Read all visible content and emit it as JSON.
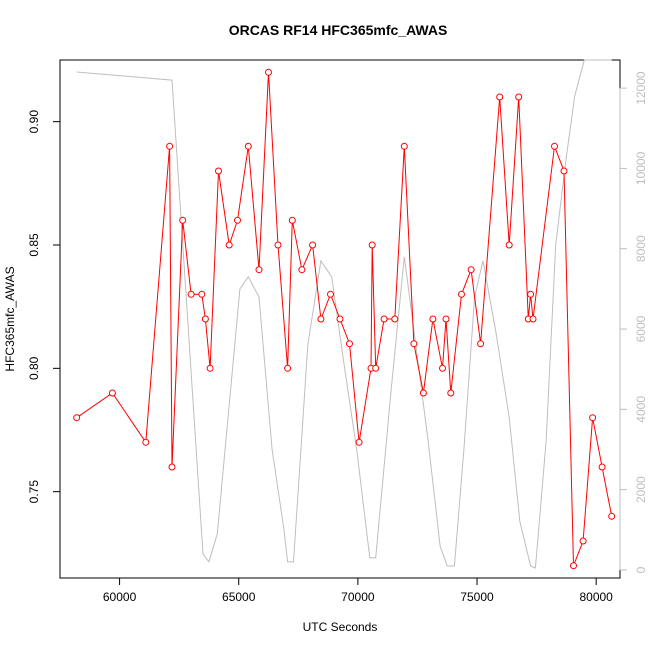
{
  "chart_data": {
    "type": "line",
    "title": "ORCAS RF14 HFC365mfc_AWAS",
    "xlabel": "UTC Seconds",
    "ylabel": "HFC365mfc_AWAS",
    "y2label": "",
    "xlim": [
      57500,
      81000
    ],
    "ylim": [
      0.715,
      0.925
    ],
    "y2lim": [
      -200,
      12700
    ],
    "x_ticks": [
      60000,
      65000,
      70000,
      75000,
      80000
    ],
    "y_ticks": [
      0.75,
      0.8,
      0.85,
      0.9
    ],
    "y_tick_labels": [
      "0.75",
      "0.80",
      "0.85",
      "0.90"
    ],
    "y2_ticks": [
      0,
      2000,
      4000,
      6000,
      8000,
      10000,
      12000
    ],
    "grid": false,
    "series": [
      {
        "color": "#ff0000",
        "style": "line+circles",
        "x": [
          58200,
          59700,
          61100,
          62100,
          62200,
          62650,
          63000,
          63450,
          63600,
          63800,
          64150,
          64600,
          64950,
          65400,
          65850,
          66250,
          66650,
          67050,
          67250,
          67650,
          68100,
          68450,
          68850,
          69250,
          69650,
          70050,
          70550,
          70600,
          70750,
          71100,
          71550,
          71950,
          72350,
          72750,
          73150,
          73550,
          73700,
          73900,
          74350,
          74750,
          75150,
          75950,
          76350,
          76750,
          77150,
          77250,
          77350,
          78250,
          78650,
          79050,
          79450,
          79850,
          80250,
          80650
        ],
        "y": [
          0.78,
          0.79,
          0.77,
          0.89,
          0.76,
          0.86,
          0.83,
          0.83,
          0.82,
          0.8,
          0.88,
          0.85,
          0.86,
          0.89,
          0.84,
          0.92,
          0.85,
          0.8,
          0.86,
          0.84,
          0.85,
          0.82,
          0.83,
          0.82,
          0.81,
          0.77,
          0.8,
          0.85,
          0.8,
          0.82,
          0.82,
          0.89,
          0.81,
          0.79,
          0.82,
          0.8,
          0.82,
          0.79,
          0.83,
          0.84,
          0.81,
          0.91,
          0.85,
          0.91,
          0.82,
          0.83,
          0.82,
          0.89,
          0.88,
          0.72,
          0.73,
          0.78,
          0.76,
          0.74
        ]
      },
      {
        "color": "#bebebe",
        "style": "line",
        "axis": "right",
        "x": [
          58200,
          62200,
          63500,
          63750,
          64100,
          65050,
          65400,
          65850,
          66400,
          66900,
          67050,
          67300,
          67900,
          68450,
          68900,
          69400,
          69950,
          70500,
          70750,
          71400,
          71950,
          72450,
          72950,
          73450,
          73750,
          74050,
          74450,
          74900,
          75250,
          75800,
          76350,
          76800,
          77250,
          77450,
          77900,
          78300,
          78750,
          79100,
          79500,
          80650
        ],
        "y": [
          12400,
          12200,
          400,
          200,
          900,
          7000,
          7300,
          6800,
          3000,
          1000,
          200,
          200,
          5600,
          7700,
          7300,
          5200,
          3000,
          300,
          300,
          4500,
          7800,
          5500,
          3200,
          600,
          100,
          100,
          3000,
          6800,
          7700,
          5900,
          3800,
          1200,
          100,
          50,
          3200,
          8100,
          10300,
          11800,
          12700,
          12700
        ]
      }
    ]
  }
}
